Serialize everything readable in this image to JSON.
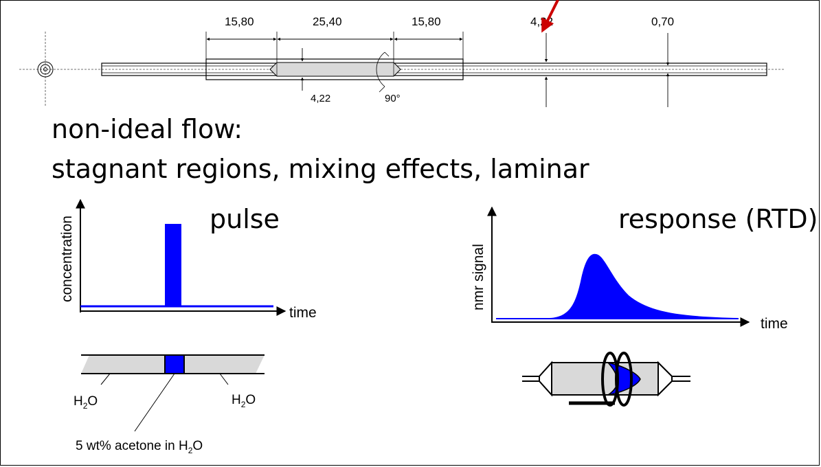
{
  "heading": {
    "line1": "non-ideal flow:",
    "line2": "stagnant regions, mixing effects, laminar"
  },
  "dimensions": [
    "15,80",
    "25,40",
    "15,80",
    "4,22",
    "0,70",
    "4,22",
    "90°"
  ],
  "pulse_plot": {
    "title": "pulse",
    "ylabel": "concentration",
    "xlabel": "time"
  },
  "response_plot": {
    "title": "response (RTD)",
    "ylabel": "nmr signal",
    "xlabel": "time"
  },
  "tube_labels": {
    "left": "H",
    "right": "H",
    "sub": "2",
    "suffix": "O",
    "plug_prefix": "5 wt% acetone in H",
    "plug_suffix": "O"
  },
  "colors": {
    "blue": "#0000ff",
    "gray": "#d9d9d9",
    "arrow_red": "#cc0000"
  }
}
